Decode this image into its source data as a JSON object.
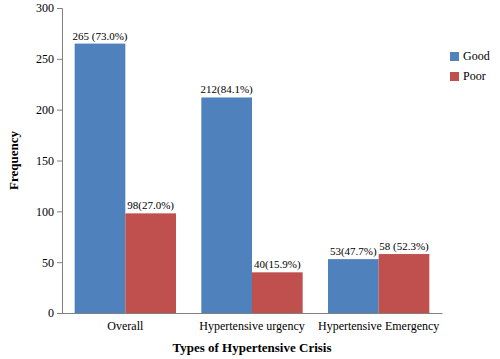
{
  "chart_data": {
    "type": "bar",
    "x_label": "Types of Hypertensive Crisis",
    "y_label": "Frequency",
    "categories": [
      "Overall",
      "Hypertensive urgency",
      "Hypertensive Emergency"
    ],
    "series": [
      {
        "name": "Good",
        "color": "#4f81bd",
        "values": [
          265,
          212,
          53
        ],
        "value_labels": [
          "265 (73.0%)",
          "212(84.1%)",
          "53(47.7%)"
        ]
      },
      {
        "name": "Poor",
        "color": "#c0504d",
        "values": [
          98,
          40,
          58
        ],
        "value_labels": [
          "98(27.0%)",
          "40(15.9%)",
          "58 (52.3%)"
        ]
      }
    ],
    "ylim": [
      0,
      300
    ],
    "yticks": [
      0,
      50,
      100,
      150,
      200,
      250,
      300
    ],
    "grid": false,
    "legend": "right",
    "data_labels": true
  }
}
